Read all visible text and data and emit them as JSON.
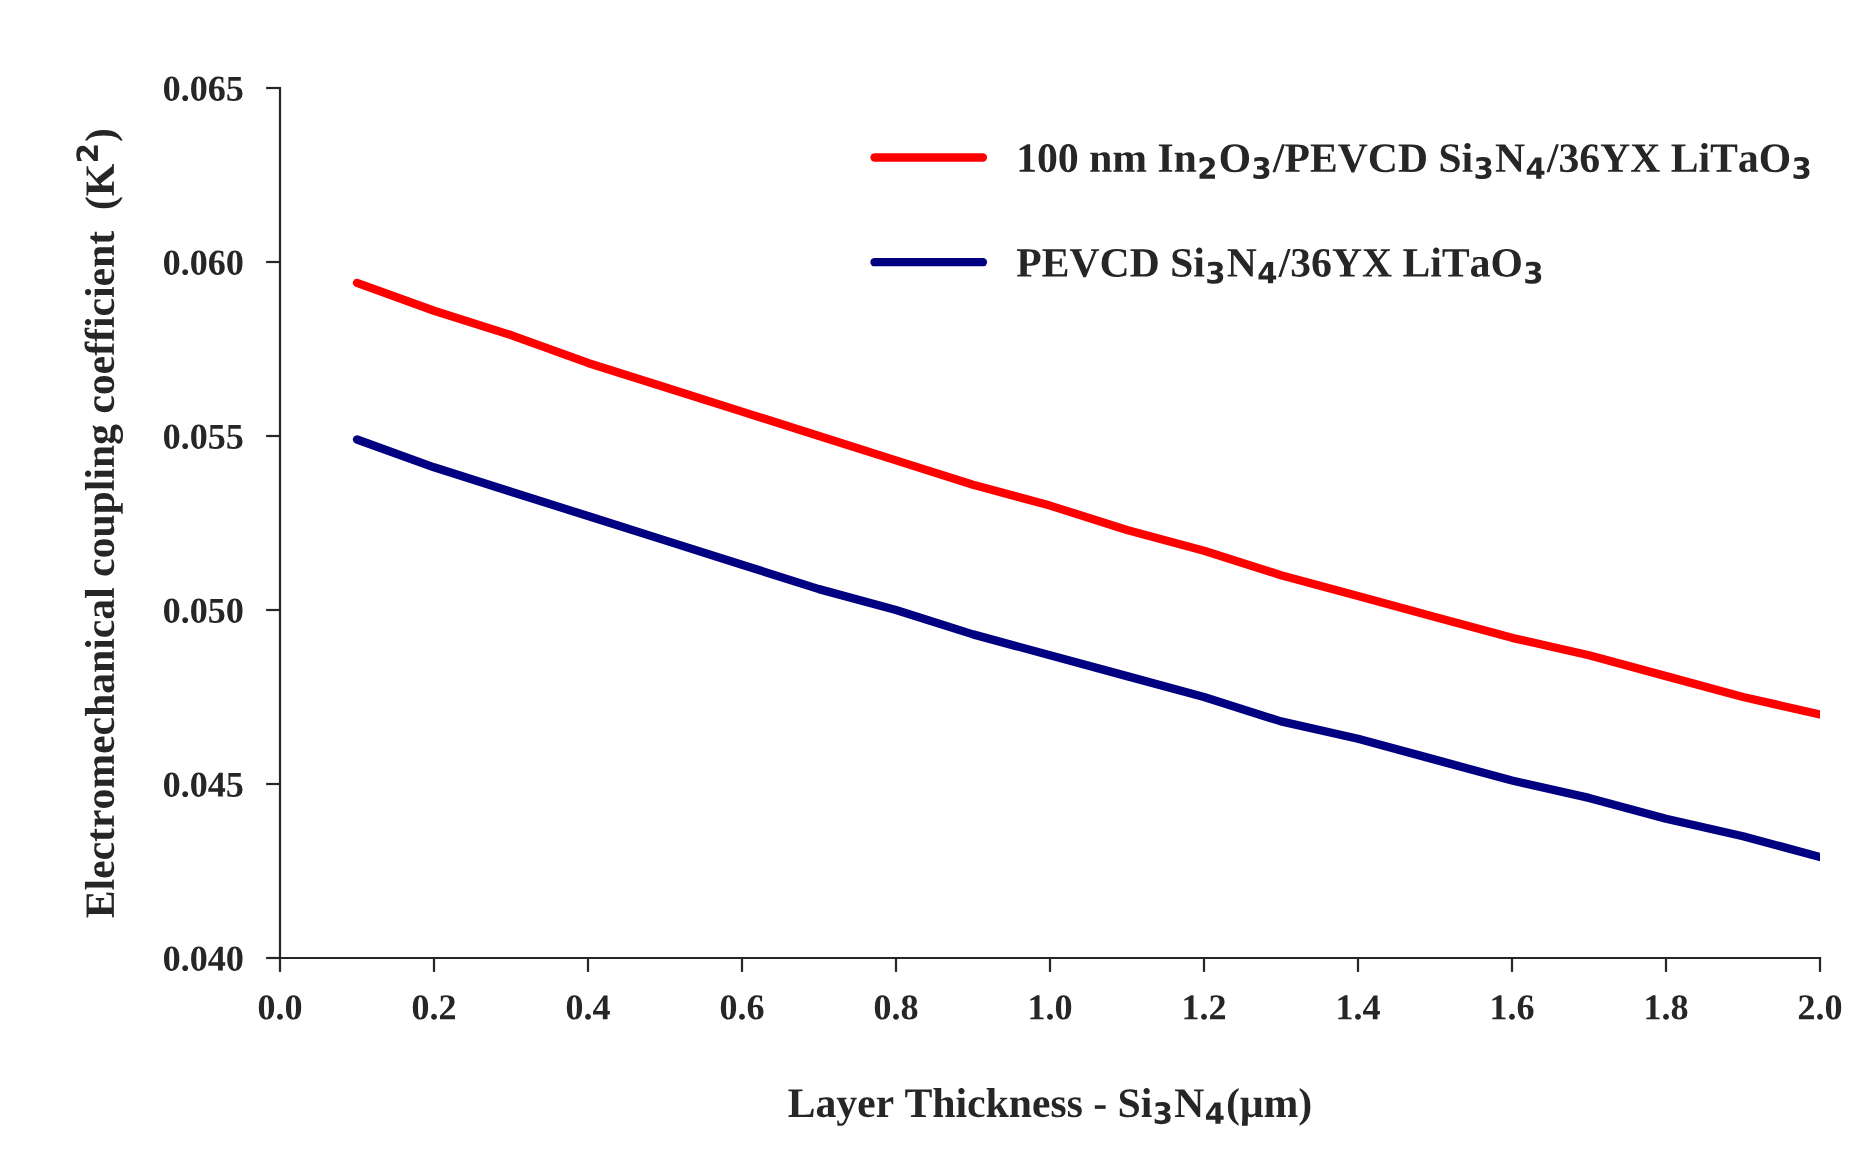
{
  "chart_data": {
    "type": "line",
    "xlabel": "Layer Thickness - Si$_{3}$N$_{4}$(μm)",
    "ylabel": "Electromechanical coupling coefficient  (K$^{2}$)",
    "x": [
      0.1,
      0.2,
      0.3,
      0.4,
      0.5,
      0.6,
      0.7,
      0.8,
      0.9,
      1.0,
      1.1,
      1.2,
      1.3,
      1.4,
      1.5,
      1.6,
      1.7,
      1.8,
      1.9,
      2.0
    ],
    "series": [
      {
        "name": "100 nm In$_{2}$O$_{3}$/PEVCD Si$_{3}$N$_{4}$/36YX LiTaO$_{3}$",
        "color": "#ff0000",
        "values": [
          0.0594,
          0.0586,
          0.0579,
          0.0571,
          0.0564,
          0.0557,
          0.055,
          0.0543,
          0.0536,
          0.053,
          0.0523,
          0.0517,
          0.051,
          0.0504,
          0.0498,
          0.0492,
          0.0487,
          0.0481,
          0.0475,
          0.047
        ]
      },
      {
        "name": "PEVCD Si$_{3}$N$_{4}$/36YX LiTaO$_{3}$",
        "color": "#000080",
        "values": [
          0.0549,
          0.0541,
          0.0534,
          0.0527,
          0.052,
          0.0513,
          0.0506,
          0.05,
          0.0493,
          0.0487,
          0.0481,
          0.0475,
          0.0468,
          0.0463,
          0.0457,
          0.0451,
          0.0446,
          0.044,
          0.0435,
          0.0429
        ]
      }
    ],
    "xlim": [
      0.0,
      2.0
    ],
    "xticks": [
      {
        "value": 0.0,
        "label": "0.0"
      },
      {
        "value": 0.2,
        "label": "0.2"
      },
      {
        "value": 0.4,
        "label": "0.4"
      },
      {
        "value": 0.6,
        "label": "0.6"
      },
      {
        "value": 0.8,
        "label": "0.8"
      },
      {
        "value": 1.0,
        "label": "1.0"
      },
      {
        "value": 1.2,
        "label": "1.2"
      },
      {
        "value": 1.4,
        "label": "1.4"
      },
      {
        "value": 1.6,
        "label": "1.6"
      },
      {
        "value": 1.8,
        "label": "1.8"
      },
      {
        "value": 2.0,
        "label": "2.0"
      }
    ],
    "ylim": [
      0.04,
      0.065
    ],
    "yticks": [
      {
        "value": 0.04,
        "label": "0.040"
      },
      {
        "value": 0.045,
        "label": "0.045"
      },
      {
        "value": 0.05,
        "label": "0.050"
      },
      {
        "value": 0.055,
        "label": "0.055"
      },
      {
        "value": 0.06,
        "label": "0.060"
      },
      {
        "value": 0.065,
        "label": "0.065"
      }
    ],
    "grid": false,
    "legend": "top right",
    "line_style": "solid"
  }
}
